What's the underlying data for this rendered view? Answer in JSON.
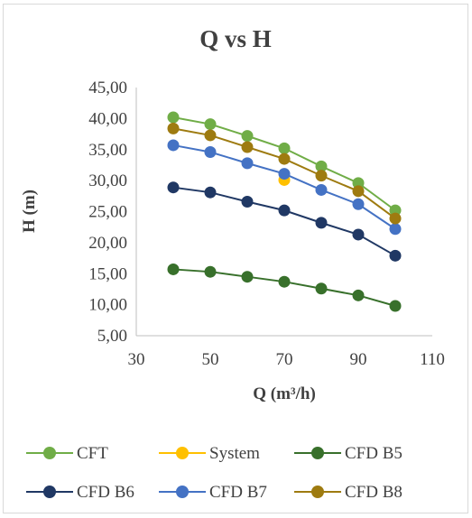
{
  "chart_data": {
    "type": "line",
    "title": "Q vs H",
    "xlabel": "Q (m³/h)",
    "ylabel": "H (m)",
    "xlim": [
      30,
      110
    ],
    "ylim": [
      5,
      45
    ],
    "xticks": [
      "30",
      "50",
      "70",
      "90",
      "110"
    ],
    "yticks": [
      "5,00",
      "10,00",
      "15,00",
      "20,00",
      "25,00",
      "30,00",
      "35,00",
      "40,00",
      "45,00"
    ],
    "grid": false,
    "legend_position": "bottom",
    "series": [
      {
        "name": "CFT",
        "color": "#70ad47",
        "points": [
          [
            40,
            40.2
          ],
          [
            50,
            39.1
          ],
          [
            60,
            37.2
          ],
          [
            70,
            35.2
          ],
          [
            80,
            32.3
          ],
          [
            90,
            29.6
          ],
          [
            100,
            25.2
          ]
        ]
      },
      {
        "name": "System",
        "color": "#ffc000",
        "points": [
          [
            70,
            30.1
          ]
        ]
      },
      {
        "name": "CFD B5",
        "color": "#38702b",
        "points": [
          [
            40,
            15.7
          ],
          [
            50,
            15.3
          ],
          [
            60,
            14.5
          ],
          [
            70,
            13.7
          ],
          [
            80,
            12.6
          ],
          [
            90,
            11.5
          ],
          [
            100,
            9.8
          ]
        ]
      },
      {
        "name": "CFD B6",
        "color": "#203864",
        "points": [
          [
            40,
            28.9
          ],
          [
            50,
            28.1
          ],
          [
            60,
            26.6
          ],
          [
            70,
            25.2
          ],
          [
            80,
            23.2
          ],
          [
            90,
            21.3
          ],
          [
            100,
            17.9
          ]
        ]
      },
      {
        "name": "CFD B7",
        "color": "#4472c4",
        "points": [
          [
            40,
            35.7
          ],
          [
            50,
            34.6
          ],
          [
            60,
            32.8
          ],
          [
            70,
            31.1
          ],
          [
            80,
            28.5
          ],
          [
            90,
            26.2
          ],
          [
            100,
            22.2
          ]
        ]
      },
      {
        "name": "CFD B8",
        "color": "#9e7b10",
        "points": [
          [
            40,
            38.4
          ],
          [
            50,
            37.3
          ],
          [
            60,
            35.4
          ],
          [
            70,
            33.5
          ],
          [
            80,
            30.8
          ],
          [
            90,
            28.3
          ],
          [
            100,
            23.9
          ]
        ]
      }
    ]
  }
}
